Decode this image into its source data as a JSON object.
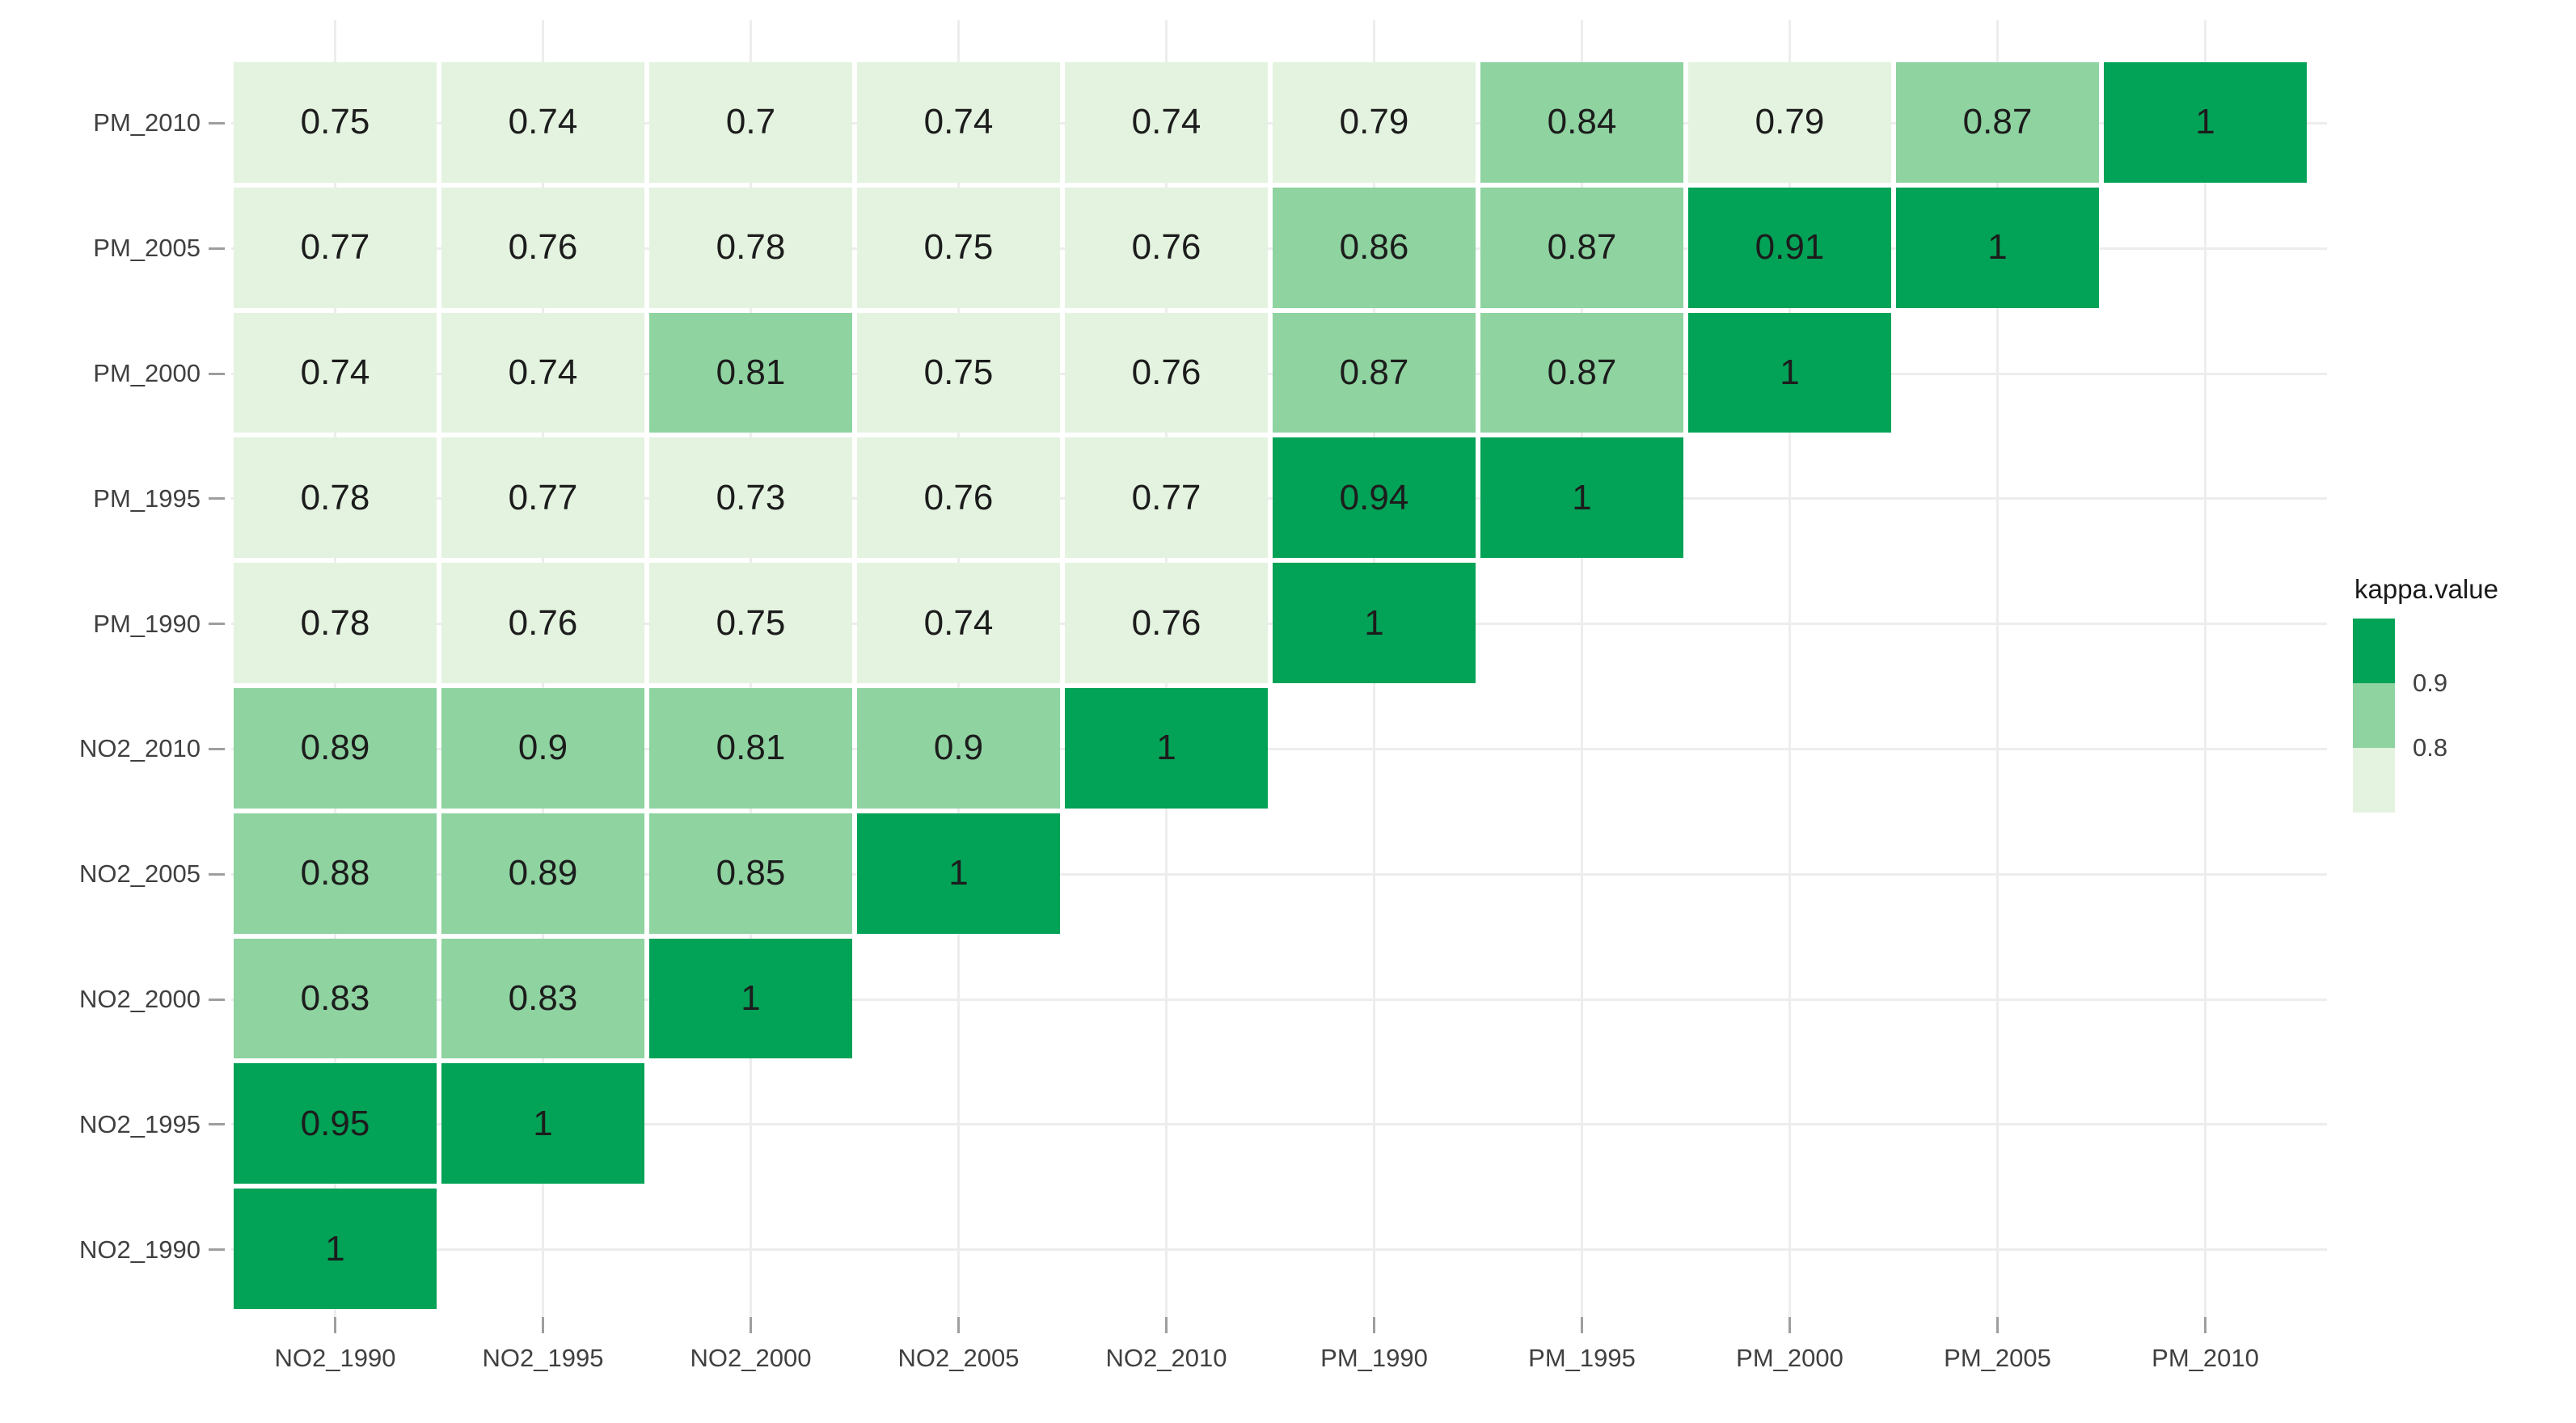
{
  "chart_data": {
    "type": "heatmap",
    "title": "",
    "xlabel": "",
    "ylabel": "",
    "grid": true,
    "x_categories": [
      "NO2_1990",
      "NO2_1995",
      "NO2_2000",
      "NO2_2005",
      "NO2_2010",
      "PM_1990",
      "PM_1995",
      "PM_2000",
      "PM_2005",
      "PM_2010"
    ],
    "y_categories_top_to_bottom": [
      "PM_2010",
      "PM_2005",
      "PM_2000",
      "PM_1995",
      "PM_1990",
      "NO2_2010",
      "NO2_2005",
      "NO2_2000",
      "NO2_1995",
      "NO2_1990"
    ],
    "values_by_row": [
      [
        0.75,
        0.74,
        0.7,
        0.74,
        0.74,
        0.79,
        0.84,
        0.79,
        0.87,
        1
      ],
      [
        0.77,
        0.76,
        0.78,
        0.75,
        0.76,
        0.86,
        0.87,
        0.91,
        1,
        null
      ],
      [
        0.74,
        0.74,
        0.81,
        0.75,
        0.76,
        0.87,
        0.87,
        1,
        null,
        null
      ],
      [
        0.78,
        0.77,
        0.73,
        0.76,
        0.77,
        0.94,
        1,
        null,
        null,
        null
      ],
      [
        0.78,
        0.76,
        0.75,
        0.74,
        0.76,
        1,
        null,
        null,
        null,
        null
      ],
      [
        0.89,
        0.9,
        0.81,
        0.9,
        1,
        null,
        null,
        null,
        null,
        null
      ],
      [
        0.88,
        0.89,
        0.85,
        1,
        null,
        null,
        null,
        null,
        null,
        null
      ],
      [
        0.83,
        0.83,
        1,
        null,
        null,
        null,
        null,
        null,
        null,
        null
      ],
      [
        0.95,
        1,
        null,
        null,
        null,
        null,
        null,
        null,
        null,
        null
      ],
      [
        1,
        null,
        null,
        null,
        null,
        null,
        null,
        null,
        null,
        null
      ]
    ],
    "legend": {
      "title": "kappa.value",
      "position": "right",
      "tick_labels": [
        "0.9",
        "0.8"
      ]
    },
    "color_scale": {
      "type": "binned",
      "dark_min": 0.905,
      "mid_min": 0.8,
      "bins": [
        {
          "range": "> 0.9",
          "color": "#02a257"
        },
        {
          "range": "0.8 - 0.9",
          "color": "#8ed3a0"
        },
        {
          "range": "< 0.8",
          "color": "#e3f3df"
        }
      ]
    }
  },
  "colors": {
    "green_dark": "#02a257",
    "green_mid": "#8ed3a0",
    "green_light": "#e3f3df",
    "gridline": "#ededed",
    "axis_text": "#404040",
    "cell_text": "#1c1c1c",
    "tick_mark": "#9e9e9e",
    "legend_title": "#1a1a1a",
    "background": "#ffffff"
  }
}
